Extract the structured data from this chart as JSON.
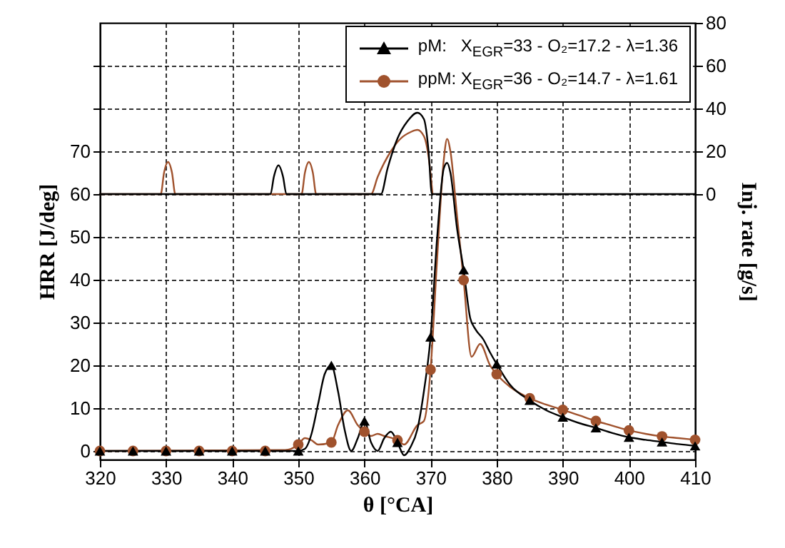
{
  "chart_data": {
    "type": "line",
    "xlabel": "θ [°CA]",
    "ylabel": "HRR [J/deg]",
    "y2label": "Inj. rate [g/s]",
    "xlim": [
      320,
      410
    ],
    "xticks": [
      320,
      330,
      340,
      350,
      360,
      370,
      380,
      390,
      400,
      410
    ],
    "ylim": [
      -2,
      100
    ],
    "yticks": [
      0,
      10,
      20,
      30,
      40,
      50,
      60,
      70,
      {
        "value": 80,
        "label": null
      },
      {
        "value": 90,
        "label": null
      }
    ],
    "y2lim": [
      -124,
      80
    ],
    "y2ticks": [
      0,
      20,
      40,
      60,
      80
    ],
    "grid": true,
    "legend": "top right",
    "line_style": "solid",
    "series": [
      {
        "type": "line",
        "axis": "y2",
        "color": "#a0522d",
        "x": [
          320,
          329.2,
          329.7,
          330.3,
          330.9,
          331.4,
          350.5,
          351,
          351.6,
          352.2,
          352.7,
          361,
          362,
          364,
          365.5,
          367,
          368,
          369,
          369.8,
          370.3
        ],
        "values": [
          0,
          0,
          10,
          15,
          10,
          0,
          0,
          10,
          15,
          10,
          0,
          0,
          8,
          20,
          26,
          29,
          30,
          27,
          15,
          0
        ]
      },
      {
        "type": "line",
        "axis": "y2",
        "color": "#000000",
        "x": [
          320,
          345.8,
          346.3,
          347,
          347.7,
          348.2,
          362.5,
          363.5,
          365,
          366.5,
          368,
          369,
          369.7,
          370.2,
          410
        ],
        "values": [
          0,
          0,
          8,
          13.4,
          8,
          0,
          0,
          12,
          26,
          34,
          38,
          35,
          20,
          0,
          0
        ]
      },
      {
        "type": "line",
        "color": "#a0522d",
        "x": [
          320,
          348,
          350,
          351,
          352,
          353,
          355,
          356,
          357.5,
          359,
          360,
          361,
          362,
          363,
          365,
          366,
          368,
          369,
          370,
          371,
          372,
          372.5,
          373,
          374,
          375,
          376.2,
          377.5,
          379,
          380,
          382,
          385,
          387.5,
          390,
          392.5,
          395,
          397.5,
          400,
          402.5,
          405,
          407.5,
          410
        ],
        "values": [
          0,
          0.2,
          1.5,
          3,
          2.5,
          1.5,
          2,
          6,
          9.5,
          6,
          4.5,
          3.5,
          4,
          3.5,
          2.5,
          1.5,
          6,
          7,
          19,
          45,
          68,
          72.9,
          70,
          55,
          39.9,
          22,
          25,
          20,
          17.9,
          15,
          12.3,
          10.8,
          9.6,
          8.3,
          7,
          5.9,
          4.8,
          4,
          3.4,
          3,
          2.6
        ]
      },
      {
        "type": "line",
        "color": "#000000",
        "x": [
          320,
          350,
          351,
          352,
          353,
          354,
          355,
          356,
          357,
          358,
          359,
          360,
          361,
          362,
          363,
          364,
          365,
          366,
          367,
          368,
          369,
          370,
          371,
          372,
          372.5,
          373,
          374,
          375,
          376,
          376.8,
          378,
          379,
          380,
          382,
          385,
          387.5,
          390,
          392.5,
          395,
          397.5,
          400,
          402.5,
          405,
          407.5,
          410
        ],
        "values": [
          0,
          0,
          0.5,
          4,
          11,
          18,
          20,
          14,
          5,
          0,
          3,
          7,
          2,
          0,
          3,
          4.5,
          2,
          -1,
          1,
          5,
          14,
          26.6,
          50,
          66,
          67.3,
          65,
          52,
          42.3,
          31,
          28.4,
          26,
          23,
          20.3,
          15.5,
          11.8,
          9.5,
          7.9,
          6.5,
          5.4,
          4.2,
          3.2,
          2.6,
          2.1,
          1.6,
          1.2
        ]
      },
      {
        "type": "scatter",
        "name": "ppM: X$_{EGR}$=36 - O₂=14.7 - λ=1.61",
        "marker": "circle",
        "color": "#a0522d",
        "x": [
          320,
          325,
          330,
          335,
          340,
          345,
          350,
          355,
          360,
          365,
          370,
          375,
          380,
          385,
          390,
          395,
          400,
          405,
          410
        ],
        "values": [
          0,
          0,
          0,
          0,
          0,
          0,
          1.5,
          2,
          4.5,
          2.5,
          19,
          39.9,
          17.9,
          12.3,
          9.6,
          7,
          4.8,
          3.4,
          2.6
        ]
      },
      {
        "type": "scatter",
        "name": "pM:   X$_{EGR}$=33 - O₂=17.2 - λ=1.36",
        "marker": "triangle",
        "color": "#000000",
        "x": [
          320,
          325,
          330,
          335,
          340,
          345,
          350,
          355,
          360,
          365,
          370,
          375,
          380,
          385,
          390,
          395,
          400,
          405,
          410
        ],
        "values": [
          0,
          0,
          0,
          0,
          0,
          0,
          0,
          20,
          7,
          2,
          26.6,
          42.3,
          20.3,
          11.8,
          7.9,
          5.4,
          3.2,
          2.1,
          1.2
        ]
      }
    ]
  }
}
